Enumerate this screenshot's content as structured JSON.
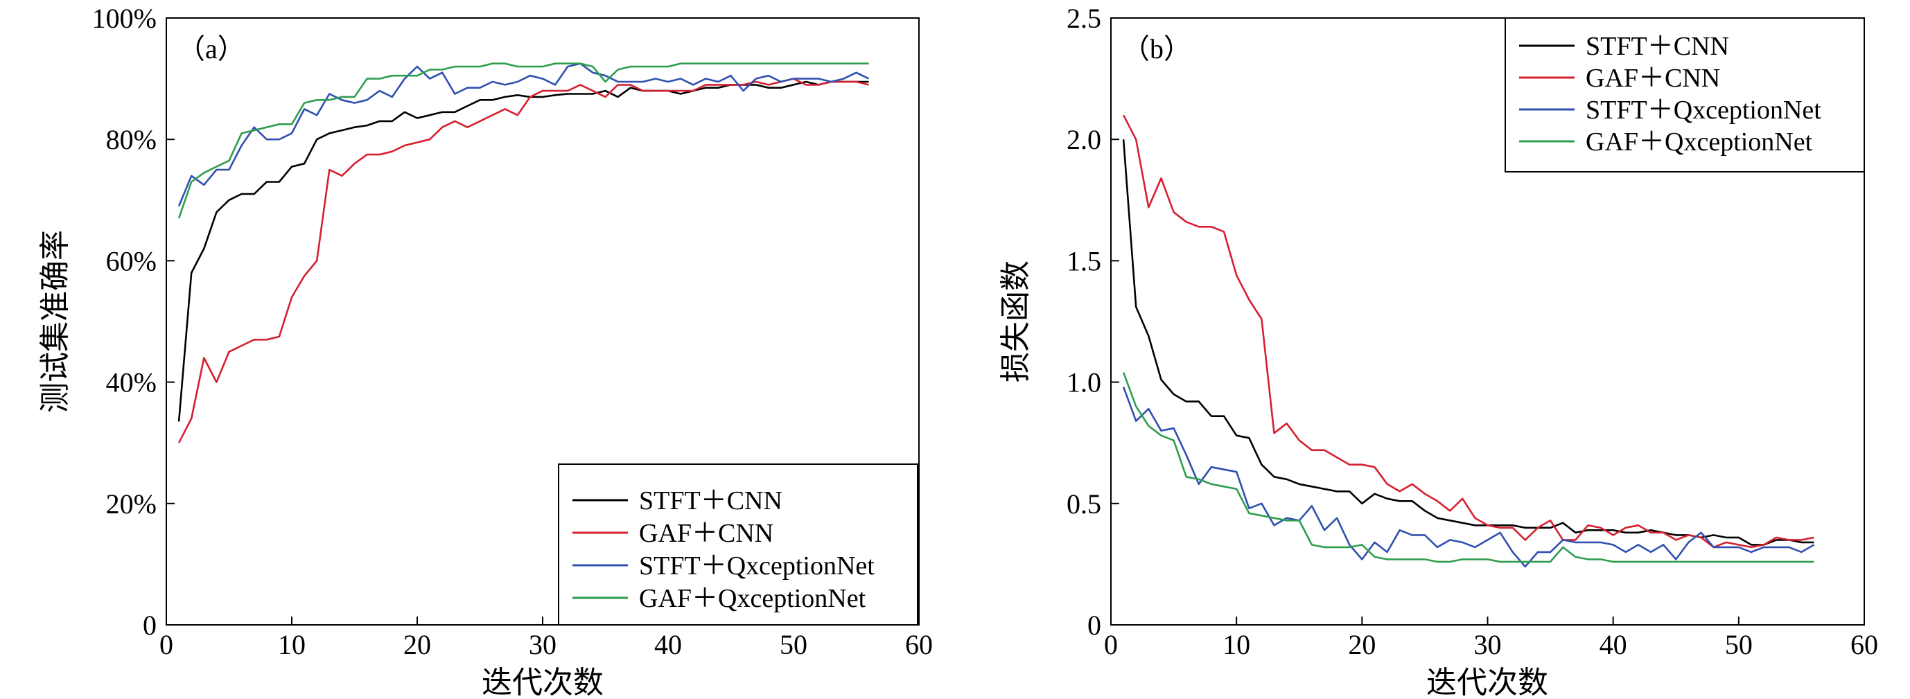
{
  "chart_data": [
    {
      "type": "line",
      "panel_label": "（a）",
      "xlabel": "迭代次数",
      "ylabel": "测试集准确率",
      "xlim": [
        0,
        60
      ],
      "ylim": [
        0,
        100
      ],
      "x_ticks": [
        "0",
        "10",
        "20",
        "30",
        "40",
        "50",
        "60"
      ],
      "y_ticks": [
        "0",
        "20%",
        "40%",
        "60%",
        "80%",
        "100%"
      ],
      "legend_position": "bottom-right",
      "grid": false,
      "series": [
        {
          "name": "STFT＋CNN",
          "color": "#000000",
          "values": [
            33.5,
            58,
            62,
            68,
            70,
            71,
            71,
            73,
            73,
            75.5,
            76,
            80,
            81,
            81.5,
            82,
            82.3,
            83,
            83,
            84.5,
            83.5,
            84,
            84.5,
            84.5,
            85.5,
            86.5,
            86.5,
            87,
            87.3,
            87,
            87,
            87.3,
            87.5,
            87.5,
            87.5,
            88,
            87,
            88.5,
            88,
            88,
            88,
            87.5,
            88,
            88.5,
            88.5,
            89,
            89,
            89,
            88.5,
            88.5,
            89,
            89.5,
            89,
            89.5,
            89.5,
            89.5,
            89.5
          ]
        },
        {
          "name": "GAF＋CNN",
          "color": "#d62030",
          "values": [
            30,
            34,
            44,
            40,
            45,
            46,
            47,
            47,
            47.5,
            54,
            57.5,
            60,
            75,
            74,
            76,
            77.5,
            77.5,
            78,
            79,
            79.5,
            80,
            82,
            83,
            82,
            83,
            84,
            85,
            84,
            87,
            88,
            88,
            88,
            89,
            88,
            87,
            89,
            89,
            88,
            88,
            88,
            88,
            88,
            89,
            89,
            89,
            89,
            89.5,
            89,
            89.5,
            90,
            89,
            89,
            89.5,
            89.5,
            89.5,
            89
          ]
        },
        {
          "name": "STFT＋QxceptionNet",
          "color": "#3050b0",
          "values": [
            69,
            74,
            72.5,
            75,
            75,
            79,
            82,
            80,
            80,
            81,
            85,
            84,
            87.5,
            86.5,
            86,
            86.5,
            88,
            87,
            90,
            92,
            90,
            91,
            87.5,
            88.5,
            88.5,
            89.5,
            89,
            89.5,
            90.5,
            90,
            89,
            92,
            92.5,
            91,
            90.5,
            89.5,
            89.5,
            89.5,
            90,
            89.5,
            90,
            89,
            90,
            89.5,
            90.5,
            88,
            90,
            90.5,
            89.5,
            90,
            90,
            90,
            89.5,
            90,
            91,
            90
          ]
        },
        {
          "name": "GAF＋QxceptionNet",
          "color": "#2e9e4e",
          "values": [
            67,
            73,
            74.5,
            75.5,
            76.5,
            81,
            81.5,
            82,
            82.5,
            82.5,
            86,
            86.5,
            86.5,
            87,
            87,
            90,
            90,
            90.5,
            90.5,
            90.5,
            91.5,
            91.5,
            92,
            92,
            92,
            92.5,
            92.5,
            92,
            92,
            92,
            92.5,
            92.5,
            92.5,
            92,
            89.5,
            91.5,
            92,
            92,
            92,
            92,
            92.5,
            92.5,
            92.5,
            92.5,
            92.5,
            92.5,
            92.5,
            92.5,
            92.5,
            92.5,
            92.5,
            92.5,
            92.5,
            92.5,
            92.5,
            92.5
          ]
        }
      ]
    },
    {
      "type": "line",
      "panel_label": "（b）",
      "xlabel": "迭代次数",
      "ylabel": "损失函数",
      "xlim": [
        0,
        60
      ],
      "ylim": [
        0,
        2.5
      ],
      "x_ticks": [
        "0",
        "10",
        "20",
        "30",
        "40",
        "50",
        "60"
      ],
      "y_ticks": [
        "0",
        "0.5",
        "1.0",
        "1.5",
        "2.0",
        "2.5"
      ],
      "legend_position": "top-right",
      "grid": false,
      "series": [
        {
          "name": "STFT＋CNN",
          "color": "#000000",
          "values": [
            2.0,
            1.31,
            1.19,
            1.01,
            0.95,
            0.92,
            0.92,
            0.86,
            0.86,
            0.78,
            0.77,
            0.66,
            0.61,
            0.6,
            0.58,
            0.57,
            0.56,
            0.55,
            0.55,
            0.5,
            0.54,
            0.52,
            0.51,
            0.51,
            0.47,
            0.44,
            0.43,
            0.42,
            0.41,
            0.41,
            0.41,
            0.41,
            0.4,
            0.4,
            0.4,
            0.42,
            0.38,
            0.39,
            0.39,
            0.39,
            0.38,
            0.38,
            0.39,
            0.38,
            0.37,
            0.37,
            0.36,
            0.37,
            0.36,
            0.36,
            0.33,
            0.33,
            0.35,
            0.35,
            0.34,
            0.34
          ]
        },
        {
          "name": "GAF＋CNN",
          "color": "#d62030",
          "values": [
            2.1,
            2.0,
            1.72,
            1.84,
            1.7,
            1.66,
            1.64,
            1.64,
            1.62,
            1.44,
            1.34,
            1.26,
            0.79,
            0.83,
            0.76,
            0.72,
            0.72,
            0.69,
            0.66,
            0.66,
            0.65,
            0.58,
            0.55,
            0.58,
            0.54,
            0.51,
            0.47,
            0.52,
            0.44,
            0.41,
            0.4,
            0.4,
            0.35,
            0.4,
            0.43,
            0.35,
            0.35,
            0.41,
            0.4,
            0.37,
            0.4,
            0.41,
            0.38,
            0.38,
            0.35,
            0.37,
            0.36,
            0.32,
            0.34,
            0.33,
            0.32,
            0.33,
            0.36,
            0.35,
            0.35,
            0.36
          ]
        },
        {
          "name": "STFT＋QxceptionNet",
          "color": "#3050b0",
          "values": [
            0.98,
            0.84,
            0.89,
            0.8,
            0.81,
            0.7,
            0.58,
            0.65,
            0.64,
            0.63,
            0.48,
            0.5,
            0.41,
            0.44,
            0.43,
            0.49,
            0.39,
            0.44,
            0.33,
            0.27,
            0.34,
            0.3,
            0.39,
            0.37,
            0.37,
            0.32,
            0.35,
            0.34,
            0.32,
            0.35,
            0.38,
            0.3,
            0.24,
            0.3,
            0.3,
            0.35,
            0.34,
            0.34,
            0.34,
            0.33,
            0.3,
            0.33,
            0.3,
            0.33,
            0.27,
            0.34,
            0.38,
            0.32,
            0.32,
            0.32,
            0.3,
            0.32,
            0.32,
            0.32,
            0.3,
            0.33
          ]
        },
        {
          "name": "GAF＋QxceptionNet",
          "color": "#2e9e4e",
          "values": [
            1.04,
            0.9,
            0.82,
            0.78,
            0.76,
            0.61,
            0.6,
            0.58,
            0.57,
            0.56,
            0.46,
            0.45,
            0.44,
            0.43,
            0.43,
            0.33,
            0.32,
            0.32,
            0.32,
            0.33,
            0.28,
            0.27,
            0.27,
            0.27,
            0.27,
            0.26,
            0.26,
            0.27,
            0.27,
            0.27,
            0.26,
            0.26,
            0.26,
            0.26,
            0.26,
            0.32,
            0.28,
            0.27,
            0.27,
            0.26,
            0.26,
            0.26,
            0.26,
            0.26,
            0.26,
            0.26,
            0.26,
            0.26,
            0.26,
            0.26,
            0.26,
            0.26,
            0.26,
            0.26,
            0.26,
            0.26
          ]
        }
      ]
    }
  ]
}
